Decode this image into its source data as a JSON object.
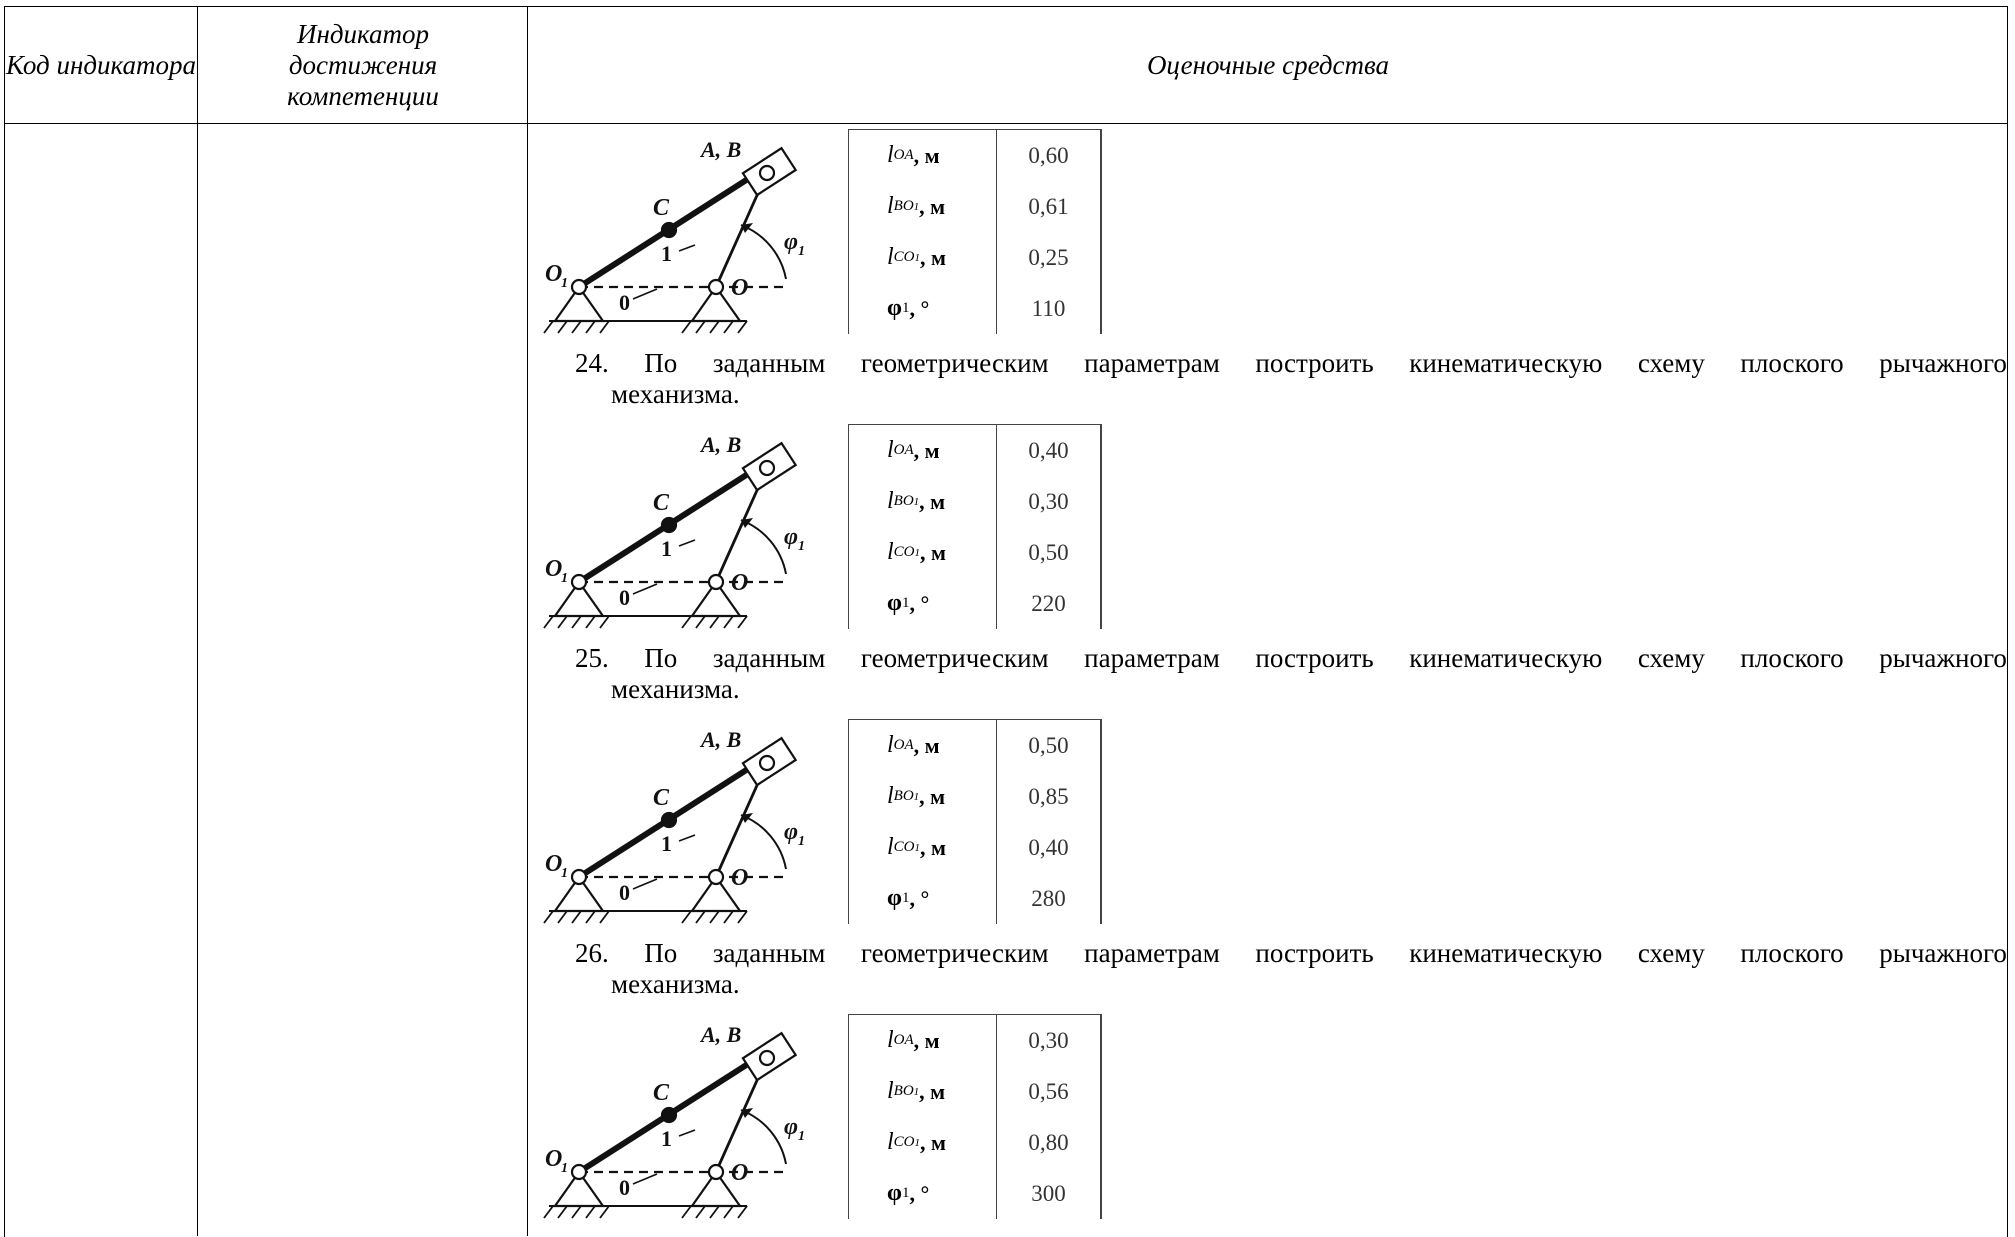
{
  "header": {
    "col1": "Код индикатора",
    "col2": "Индикатор достижения компетенции",
    "col3": "Оценочные средства"
  },
  "figure_labels": {
    "ab": "A, B",
    "c": "C",
    "o1": "O",
    "o1_sub": "1",
    "o": "O",
    "one": "1",
    "zero": "0",
    "phi": "φ",
    "phi_sub": "1"
  },
  "param_labels": {
    "l": "l",
    "oa_sub": "OA",
    "bo1_sub": "BO",
    "bo1_sub2": "1",
    "co1_sub": "CO",
    "co1_sub2": "1",
    "meter_unit": ", м",
    "phi": "φ",
    "phi_sub": "1",
    "degree_unit": ", °"
  },
  "figures": [
    {
      "l_oa": "0,60",
      "l_bo1": "0,61",
      "l_co1": "0,25",
      "phi1": "110"
    },
    {
      "l_oa": "0,40",
      "l_bo1": "0,30",
      "l_co1": "0,50",
      "phi1": "220"
    },
    {
      "l_oa": "0,50",
      "l_bo1": "0,85",
      "l_co1": "0,40",
      "phi1": "280"
    },
    {
      "l_oa": "0,30",
      "l_bo1": "0,56",
      "l_co1": "0,80",
      "phi1": "300"
    }
  ],
  "tasks": [
    {
      "number": "24.",
      "line1": "По заданным геометрическим параметрам построить кинематическую схему плоского рычажного",
      "line2": "механизма."
    },
    {
      "number": "25.",
      "line1": "По заданным геометрическим параметрам построить кинематическую схему плоского рычажного",
      "line2": "механизма."
    },
    {
      "number": "26.",
      "line1": "По заданным геометрическим параметрам построить кинематическую схему плоского рычажного",
      "line2": "механизма."
    }
  ]
}
